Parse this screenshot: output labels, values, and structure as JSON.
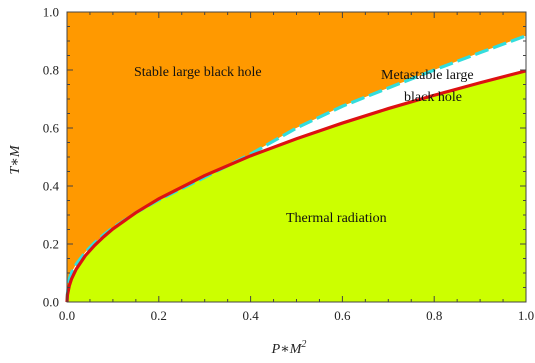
{
  "chart_data": {
    "type": "area",
    "title": "",
    "xlabel": {
      "base": "P∗M",
      "sup": "2"
    },
    "ylabel": "T∗M",
    "xlim": [
      0,
      1
    ],
    "ylim": [
      0,
      1
    ],
    "x_ticks": [
      0.0,
      0.2,
      0.4,
      0.6,
      0.8,
      1.0
    ],
    "y_ticks": [
      0.0,
      0.2,
      0.4,
      0.6,
      0.8,
      1.0
    ],
    "x_tick_labels": [
      "0.0",
      "0.2",
      "0.4",
      "0.6",
      "0.8",
      "1.0"
    ],
    "y_tick_labels": [
      "0.0",
      "0.2",
      "0.4",
      "0.6",
      "0.8",
      "1.0"
    ],
    "grid": false,
    "regions": [
      {
        "label": "Stable large black hole",
        "color": "#ff9900"
      },
      {
        "label": "Metastable large",
        "label_line2": "black hole",
        "color": "#ffffff"
      },
      {
        "label": "Thermal radiation",
        "color": "#ccff00"
      }
    ],
    "series": [
      {
        "style": "dashed",
        "color": "#33dddd",
        "x": [
          0.0,
          0.001,
          0.005,
          0.01,
          0.02,
          0.04,
          0.06,
          0.08,
          0.1,
          0.15,
          0.2,
          0.3,
          0.4,
          0.5,
          0.6,
          0.7,
          0.8,
          0.9,
          1.0
        ],
        "y": [
          0.0,
          0.03,
          0.08,
          0.102,
          0.13,
          0.172,
          0.204,
          0.232,
          0.256,
          0.308,
          0.352,
          0.43,
          0.51,
          0.6,
          0.675,
          0.738,
          0.8,
          0.86,
          0.918
        ]
      },
      {
        "style": "solid",
        "color": "#dd1111",
        "x": [
          0.0,
          0.001,
          0.005,
          0.01,
          0.02,
          0.04,
          0.06,
          0.08,
          0.1,
          0.15,
          0.2,
          0.3,
          0.4,
          0.5,
          0.6,
          0.7,
          0.8,
          0.9,
          1.0
        ],
        "y": [
          0.0,
          0.025,
          0.056,
          0.08,
          0.113,
          0.16,
          0.195,
          0.225,
          0.252,
          0.308,
          0.356,
          0.436,
          0.504,
          0.563,
          0.617,
          0.667,
          0.713,
          0.756,
          0.797
        ]
      }
    ]
  }
}
